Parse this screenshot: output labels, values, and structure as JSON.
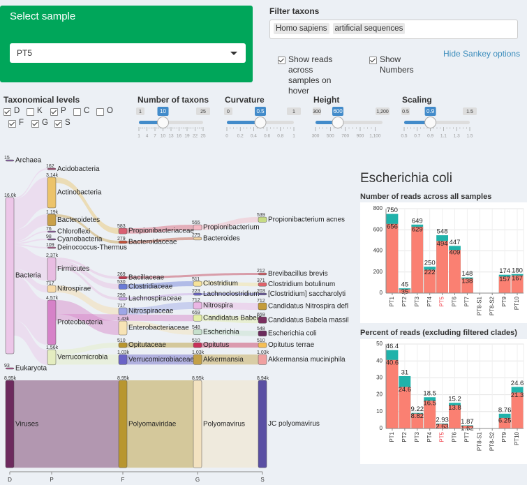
{
  "header": {
    "select_sample": {
      "label": "Select sample",
      "value": "PT5"
    },
    "filter": {
      "label": "Filter taxons",
      "tags": [
        "Homo sapiens",
        "artificial sequences"
      ]
    },
    "options": [
      {
        "label": "Show reads across samples on hover",
        "checked": true
      },
      {
        "label": "Show Numbers",
        "checked": true
      }
    ],
    "hide_link": "Hide Sankey options"
  },
  "levels": {
    "label": "Taxonomical levels",
    "items": [
      {
        "label": "D",
        "checked": true
      },
      {
        "label": "K",
        "checked": false
      },
      {
        "label": "P",
        "checked": true
      },
      {
        "label": "C",
        "checked": false
      },
      {
        "label": "O",
        "checked": false
      },
      {
        "label": "F",
        "checked": true
      },
      {
        "label": "G",
        "checked": true
      },
      {
        "label": "S",
        "checked": true
      }
    ]
  },
  "sliders": [
    {
      "label": "Number of taxons",
      "min": 1,
      "max": 25,
      "value": 10,
      "ticks": [
        1,
        4,
        7,
        10,
        13,
        16,
        19,
        22,
        25
      ]
    },
    {
      "label": "Curvature",
      "min": 0,
      "max": 1,
      "value": 0.5,
      "ticks": [
        0,
        0.2,
        0.4,
        0.6,
        0.8,
        1
      ]
    },
    {
      "label": "Height",
      "min": 300,
      "max": {
        "value": 1200,
        "label": "1,200"
      },
      "value": 600,
      "ticks": [
        300,
        500,
        700,
        900,
        {
          "value": 1100,
          "label": "1,100"
        }
      ]
    },
    {
      "label": "Scaling",
      "min": 0.5,
      "max": 1.5,
      "value": 0.9,
      "ticks": [
        0.5,
        0.7,
        0.9,
        1.1,
        1.3,
        1.5
      ]
    }
  ],
  "sankey": {
    "axis": [
      "D",
      "P",
      "F",
      "G",
      "S"
    ],
    "nodes": [
      {
        "name": "Archaea",
        "value": 15,
        "color": "#8a5fa8"
      },
      {
        "name": "Bacteria",
        "value": 16000,
        "value_label": "16.0k",
        "color": "#ecc6e8"
      },
      {
        "name": "Eukaryota",
        "value": 93,
        "color": "#b04d8c"
      },
      {
        "name": "Viruses",
        "value": 8950,
        "value_label": "8.95k",
        "color": "#6d2a5e"
      },
      {
        "name": "Acidobacteria",
        "value": 162,
        "color": "#9e4a6e"
      },
      {
        "name": "Actinobacteria",
        "value": 3140,
        "value_label": "3.14k",
        "color": "#ecc36a"
      },
      {
        "name": "Bacteroidetes",
        "value": 1190,
        "value_label": "1.19k",
        "color": "#c9a04a"
      },
      {
        "name": "Chloroflexi",
        "value": 76,
        "color": "#8c5a9c"
      },
      {
        "name": "Cyanobacteria",
        "value": 98,
        "color": "#7b4c8c"
      },
      {
        "name": "Deinococcus-Thermus",
        "value": 109,
        "color": "#b05a8a"
      },
      {
        "name": "Firmicutes",
        "value": 2370,
        "value_label": "2.37k",
        "color": "#e8bde2"
      },
      {
        "name": "Nitrospirae",
        "value": 717,
        "color": "#f7d9a6"
      },
      {
        "name": "Proteobacteria",
        "value": 4570,
        "value_label": "4.57k",
        "color": "#d682c8"
      },
      {
        "name": "Verrucomicrobia",
        "value": 1560,
        "value_label": "1.56k",
        "color": "#e4edc0"
      },
      {
        "name": "Propionibacteriaceae",
        "value": 583,
        "color": "#d95f73"
      },
      {
        "name": "Bacteroidaceae",
        "value": 279,
        "color": "#c1523a"
      },
      {
        "name": "Bacillaceae",
        "value": 269,
        "color": "#c0374d"
      },
      {
        "name": "Clostridiaceae",
        "value": 530,
        "color": "#6a7bd6"
      },
      {
        "name": "Lachnospiraceae",
        "value": 290,
        "color": "#c9a6e6"
      },
      {
        "name": "Nitrospiraceae",
        "value": 717,
        "color": "#9ea6e6"
      },
      {
        "name": "Enterobacteriaceae",
        "value": 1430,
        "value_label": "1.43k",
        "color": "#f7e3b5"
      },
      {
        "name": "Opitutaceae",
        "value": 510,
        "color": "#b9962e"
      },
      {
        "name": "Verrucomicrobiaceae",
        "value": 1030,
        "value_label": "1.03k",
        "color": "#6a63c6"
      },
      {
        "name": "Polyomaviridae",
        "value": 8950,
        "value_label": "8.95k",
        "color": "#b8962f"
      },
      {
        "name": "Propionibacterium",
        "value": 555,
        "color": "#f5b9c4"
      },
      {
        "name": "Bacteroides",
        "value": 279,
        "color": "#f0d0a0"
      },
      {
        "name": "Clostridium",
        "value": 511,
        "color": "#f6e299"
      },
      {
        "name": "Lachnoclostridium",
        "value": 223,
        "color": "#6b63c6"
      },
      {
        "name": "Nitrospira",
        "value": 712,
        "color": "#eab6e4"
      },
      {
        "name": "Candidatus Babela",
        "value": 659,
        "color": "#e5eea6"
      },
      {
        "name": "Escherichia",
        "value": 548,
        "color": "#c6e0cc"
      },
      {
        "name": "Opitutus",
        "value": 510,
        "color": "#c73058"
      },
      {
        "name": "Akkermansia",
        "value": 1030,
        "value_label": "1.03k",
        "color": "#c4a148"
      },
      {
        "name": "Polyomavirus",
        "value": 8950,
        "value_label": "8.95k",
        "color": "#f3e2c0"
      },
      {
        "name": "Propionibacterium acnes",
        "value": 539,
        "color": "#c7db84"
      },
      {
        "name": "Brevibacillus brevis",
        "value": 212,
        "color": "#d35f67"
      },
      {
        "name": "Clostridium botulinum",
        "value": 371,
        "color": "#e2636b"
      },
      {
        "name": "[Clostridium] saccharolyti",
        "value": 203,
        "color": "#6b5a9c"
      },
      {
        "name": "Candidatus Nitrospira defl",
        "value": 712,
        "color": "#c49c3a"
      },
      {
        "name": "Candidatus Babela massil",
        "value": 659,
        "color": "#7a2f5f"
      },
      {
        "name": "Escherichia coli",
        "value": 548,
        "color": "#6b2a5c"
      },
      {
        "name": "Opitutus terrae",
        "value": 510,
        "color": "#f5be55"
      },
      {
        "name": "Akkermansia muciniphila",
        "value": 1030,
        "value_label": "1.03k",
        "color": "#f0a0a0"
      },
      {
        "name": "JC polyomavirus",
        "value": 8940,
        "value_label": "8.94k",
        "color": "#5a4fa3"
      }
    ]
  },
  "detail": {
    "title": "Escherichia coli"
  },
  "chart_data": [
    {
      "type": "bar",
      "title": "Number of reads across all samples",
      "categories": [
        "PT1",
        "PT2",
        "PT3",
        "PT4",
        "PT5",
        "PT6",
        "PT7",
        "PT8-S1",
        "PT8-S2",
        "PT9",
        "PT10"
      ],
      "series": [
        {
          "color": "#20b2aa",
          "values": [
            750,
            45,
            649,
            250,
            548,
            447,
            148,
            null,
            null,
            174,
            180
          ]
        },
        {
          "color": "#fa8072",
          "values": [
            656,
            35,
            629,
            222,
            494,
            409,
            138,
            null,
            null,
            157,
            167
          ]
        }
      ],
      "ylim": [
        0,
        800
      ],
      "yticks": [
        0,
        200,
        400,
        600,
        800
      ],
      "grid": true,
      "highlight": 4,
      "highlight_color": "#f0404a"
    },
    {
      "type": "bar",
      "title": "Percent of reads (excluding filtered clades)",
      "categories": [
        "PT1",
        "PT2",
        "PT3",
        "PT4",
        "PT5",
        "PT6",
        "PT7",
        "PT8-S1",
        "PT8-S2",
        "PT9",
        "PT10"
      ],
      "series": [
        {
          "color": "#20b2aa",
          "values": [
            46.4,
            31,
            9.22,
            18.5,
            2.93,
            15.2,
            1.87,
            null,
            null,
            8.76,
            24.6
          ]
        },
        {
          "color": "#fa8072",
          "values": [
            40.6,
            24.6,
            8.82,
            16.5,
            2.63,
            13.8,
            1.62,
            null,
            null,
            6.25,
            21.3
          ]
        }
      ],
      "ylim": [
        0,
        50
      ],
      "yticks": [
        0,
        10,
        20,
        30,
        40,
        50
      ],
      "grid": true,
      "highlight": 4,
      "highlight_color": "#f0404a"
    }
  ]
}
